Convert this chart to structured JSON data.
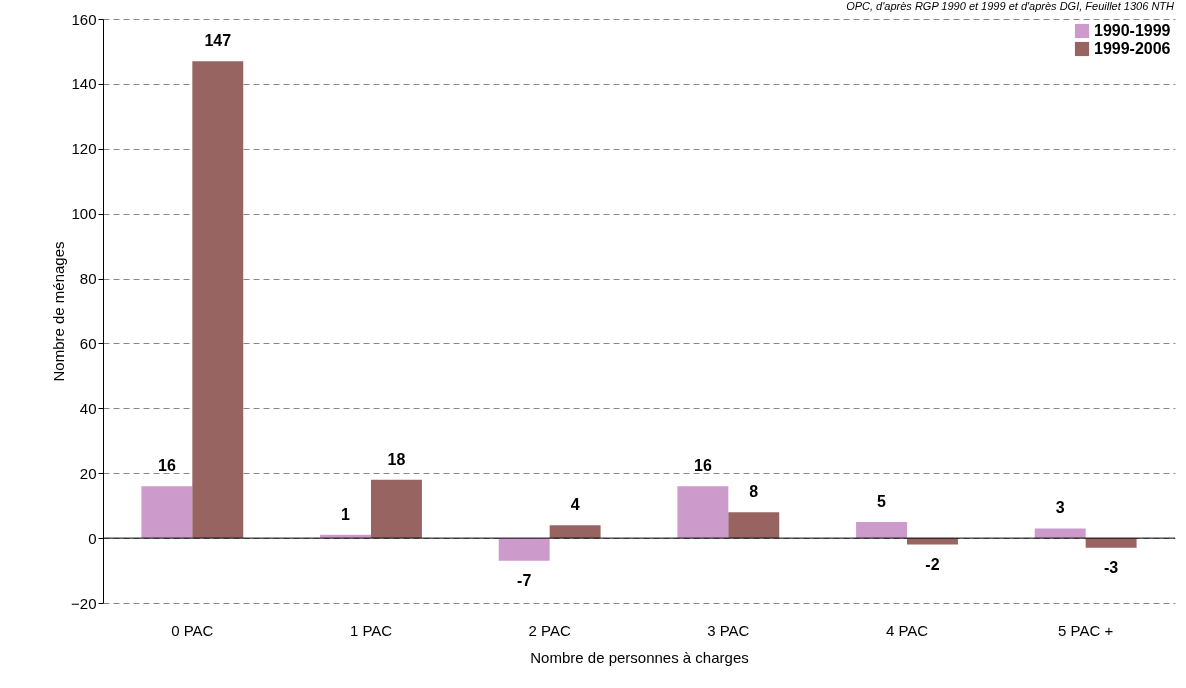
{
  "chart_data": {
    "type": "bar",
    "annotations": [
      "OPC, d'après RGP 1990 et 1999 et d'après DGI, Feuillet 1306 NTH"
    ],
    "xlabel": "Nombre de personnes à charges",
    "ylabel": "Nombre de ménages",
    "categories": [
      "0 PAC",
      "1 PAC",
      "2 PAC",
      "3 PAC",
      "4 PAC",
      "5  PAC +"
    ],
    "series": [
      {
        "name": "1990-1999",
        "color": "#cc9bcc",
        "values": [
          16,
          1,
          -7,
          16,
          5,
          3
        ]
      },
      {
        "name": "1999-2006",
        "color": "#976462",
        "values": [
          147,
          18,
          4,
          8,
          -2,
          -3
        ]
      }
    ],
    "ylim": [
      -20,
      160
    ],
    "yticks": [
      -20,
      0,
      20,
      40,
      60,
      80,
      100,
      120,
      140,
      160
    ],
    "grid": "y",
    "legend": "top right",
    "data_labels": true
  }
}
